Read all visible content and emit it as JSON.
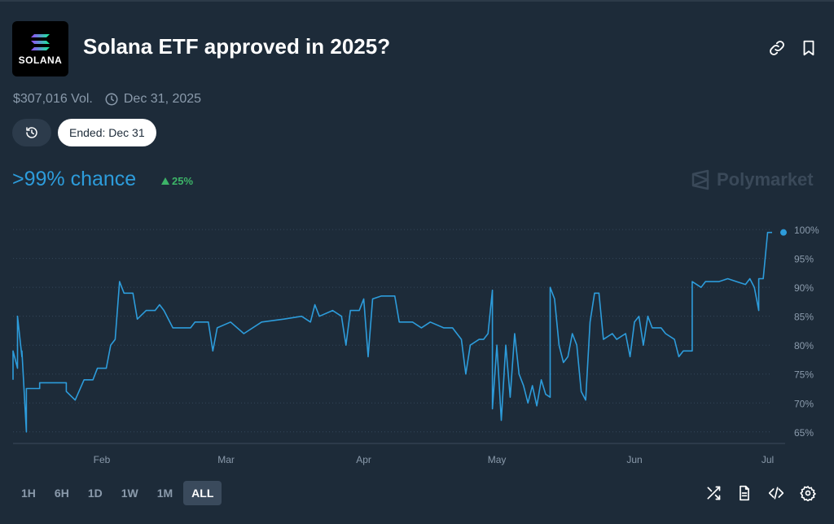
{
  "header": {
    "logo_text": "SOLANA",
    "title": "Solana ETF approved in 2025?",
    "icons": [
      "link-icon",
      "bookmark-icon"
    ]
  },
  "meta": {
    "volume": "$307,016 Vol.",
    "end_date": "Dec 31, 2025"
  },
  "pills": {
    "ended_label": "Ended: Dec 31"
  },
  "summary": {
    "chance": ">99% chance",
    "delta": "25%",
    "brand": "Polymarket"
  },
  "colors": {
    "background": "#1d2b39",
    "line": "#2d9cdb",
    "positive": "#3db468",
    "muted": "#8a9aab"
  },
  "chart_data": {
    "type": "line",
    "x_ticks": [
      "Feb",
      "Mar",
      "Apr",
      "May",
      "Jun",
      "Jul"
    ],
    "y_ticks": [
      "100%",
      "95%",
      "90%",
      "85%",
      "80%",
      "75%",
      "70%",
      "65%"
    ],
    "ylim": [
      63,
      101
    ],
    "y_unit": "%",
    "grid": "horizontal-dotted",
    "series": [
      {
        "points": [
          [
            "Jan 12",
            74
          ],
          [
            "Jan 12",
            79
          ],
          [
            "Jan 13",
            76
          ],
          [
            "Jan 13",
            85
          ],
          [
            "Jan 14",
            78
          ],
          [
            "Jan 14",
            79
          ],
          [
            "Jan 15",
            65
          ],
          [
            "Jan 15",
            72.5
          ],
          [
            "Jan 18",
            72.5
          ],
          [
            "Jan 18",
            73.5
          ],
          [
            "Jan 24",
            73.5
          ],
          [
            "Jan 24",
            72
          ],
          [
            "Jan 26",
            70.5
          ],
          [
            "Jan 28",
            74
          ],
          [
            "Jan 30",
            74
          ],
          [
            "Jan 31",
            76
          ],
          [
            "Feb 2",
            76
          ],
          [
            "Feb 3",
            80
          ],
          [
            "Feb 4",
            81
          ],
          [
            "Feb 5",
            91
          ],
          [
            "Feb 6",
            89
          ],
          [
            "Feb 8",
            89
          ],
          [
            "Feb 9",
            84.5
          ],
          [
            "Feb 11",
            86
          ],
          [
            "Feb 13",
            86
          ],
          [
            "Feb 14",
            87
          ],
          [
            "Feb 15",
            86
          ],
          [
            "Feb 17",
            83
          ],
          [
            "Feb 21",
            83
          ],
          [
            "Feb 22",
            84
          ],
          [
            "Feb 25",
            84
          ],
          [
            "Feb 26",
            79
          ],
          [
            "Feb 27",
            83
          ],
          [
            "Mar 2",
            84
          ],
          [
            "Mar 5",
            82
          ],
          [
            "Mar 9",
            84
          ],
          [
            "Mar 14",
            84.5
          ],
          [
            "Mar 18",
            85
          ],
          [
            "Mar 20",
            84
          ],
          [
            "Mar 21",
            87
          ],
          [
            "Mar 22",
            85
          ],
          [
            "Mar 25",
            86
          ],
          [
            "Mar 27",
            85
          ],
          [
            "Mar 28",
            80
          ],
          [
            "Mar 29",
            86
          ],
          [
            "Mar 31",
            86
          ],
          [
            "Apr 1",
            88
          ],
          [
            "Apr 2",
            78
          ],
          [
            "Apr 3",
            88
          ],
          [
            "Apr 5",
            88.5
          ],
          [
            "Apr 8",
            88.5
          ],
          [
            "Apr 9",
            84
          ],
          [
            "Apr 12",
            84
          ],
          [
            "Apr 14",
            83
          ],
          [
            "Apr 16",
            84
          ],
          [
            "Apr 19",
            83
          ],
          [
            "Apr 21",
            83
          ],
          [
            "Apr 22",
            82
          ],
          [
            "Apr 23",
            81
          ],
          [
            "Apr 24",
            75
          ],
          [
            "Apr 25",
            80
          ],
          [
            "Apr 27",
            81
          ],
          [
            "Apr 28",
            81
          ],
          [
            "Apr 29",
            82
          ],
          [
            "Apr 30",
            89.5
          ],
          [
            "Apr 30",
            69
          ],
          [
            "May 1",
            80
          ],
          [
            "May 2",
            67
          ],
          [
            "May 3",
            80
          ],
          [
            "May 4",
            71
          ],
          [
            "May 5",
            82
          ],
          [
            "May 6",
            75
          ],
          [
            "May 7",
            73
          ],
          [
            "May 8",
            70
          ],
          [
            "May 9",
            73
          ],
          [
            "May 10",
            69.5
          ],
          [
            "May 11",
            74
          ],
          [
            "May 12",
            71.5
          ],
          [
            "May 13",
            71
          ],
          [
            "May 13",
            90
          ],
          [
            "May 14",
            88
          ],
          [
            "May 15",
            80
          ],
          [
            "May 16",
            77
          ],
          [
            "May 17",
            78
          ],
          [
            "May 18",
            82
          ],
          [
            "May 19",
            80
          ],
          [
            "May 20",
            72
          ],
          [
            "May 21",
            70.5
          ],
          [
            "May 22",
            84
          ],
          [
            "May 23",
            89
          ],
          [
            "May 24",
            89
          ],
          [
            "May 25",
            81
          ],
          [
            "May 27",
            82
          ],
          [
            "May 28",
            81
          ],
          [
            "May 30",
            82
          ],
          [
            "May 31",
            78
          ],
          [
            "Jun 1",
            84
          ],
          [
            "Jun 2",
            85
          ],
          [
            "Jun 3",
            80
          ],
          [
            "Jun 4",
            85
          ],
          [
            "Jun 5",
            83
          ],
          [
            "Jun 7",
            83
          ],
          [
            "Jun 8",
            82
          ],
          [
            "Jun 10",
            81
          ],
          [
            "Jun 11",
            78
          ],
          [
            "Jun 12",
            79
          ],
          [
            "Jun 14",
            79
          ],
          [
            "Jun 14",
            91
          ],
          [
            "Jun 16",
            90
          ],
          [
            "Jun 17",
            91
          ],
          [
            "Jun 20",
            91
          ],
          [
            "Jun 22",
            91.5
          ],
          [
            "Jun 24",
            91
          ],
          [
            "Jun 26",
            90.5
          ],
          [
            "Jun 27",
            91.5
          ],
          [
            "Jun 28",
            90
          ],
          [
            "Jun 29",
            86
          ],
          [
            "Jun 29",
            91.5
          ],
          [
            "Jun 30",
            91.5
          ],
          [
            "Jul 1",
            99.5
          ],
          [
            "Jul 2",
            99.5
          ]
        ]
      }
    ]
  },
  "range_buttons": [
    "1H",
    "6H",
    "1D",
    "1W",
    "1M",
    "ALL"
  ],
  "active_range": "ALL",
  "footer_icons": [
    "shuffle-icon",
    "document-icon",
    "code-icon",
    "settings-icon"
  ]
}
